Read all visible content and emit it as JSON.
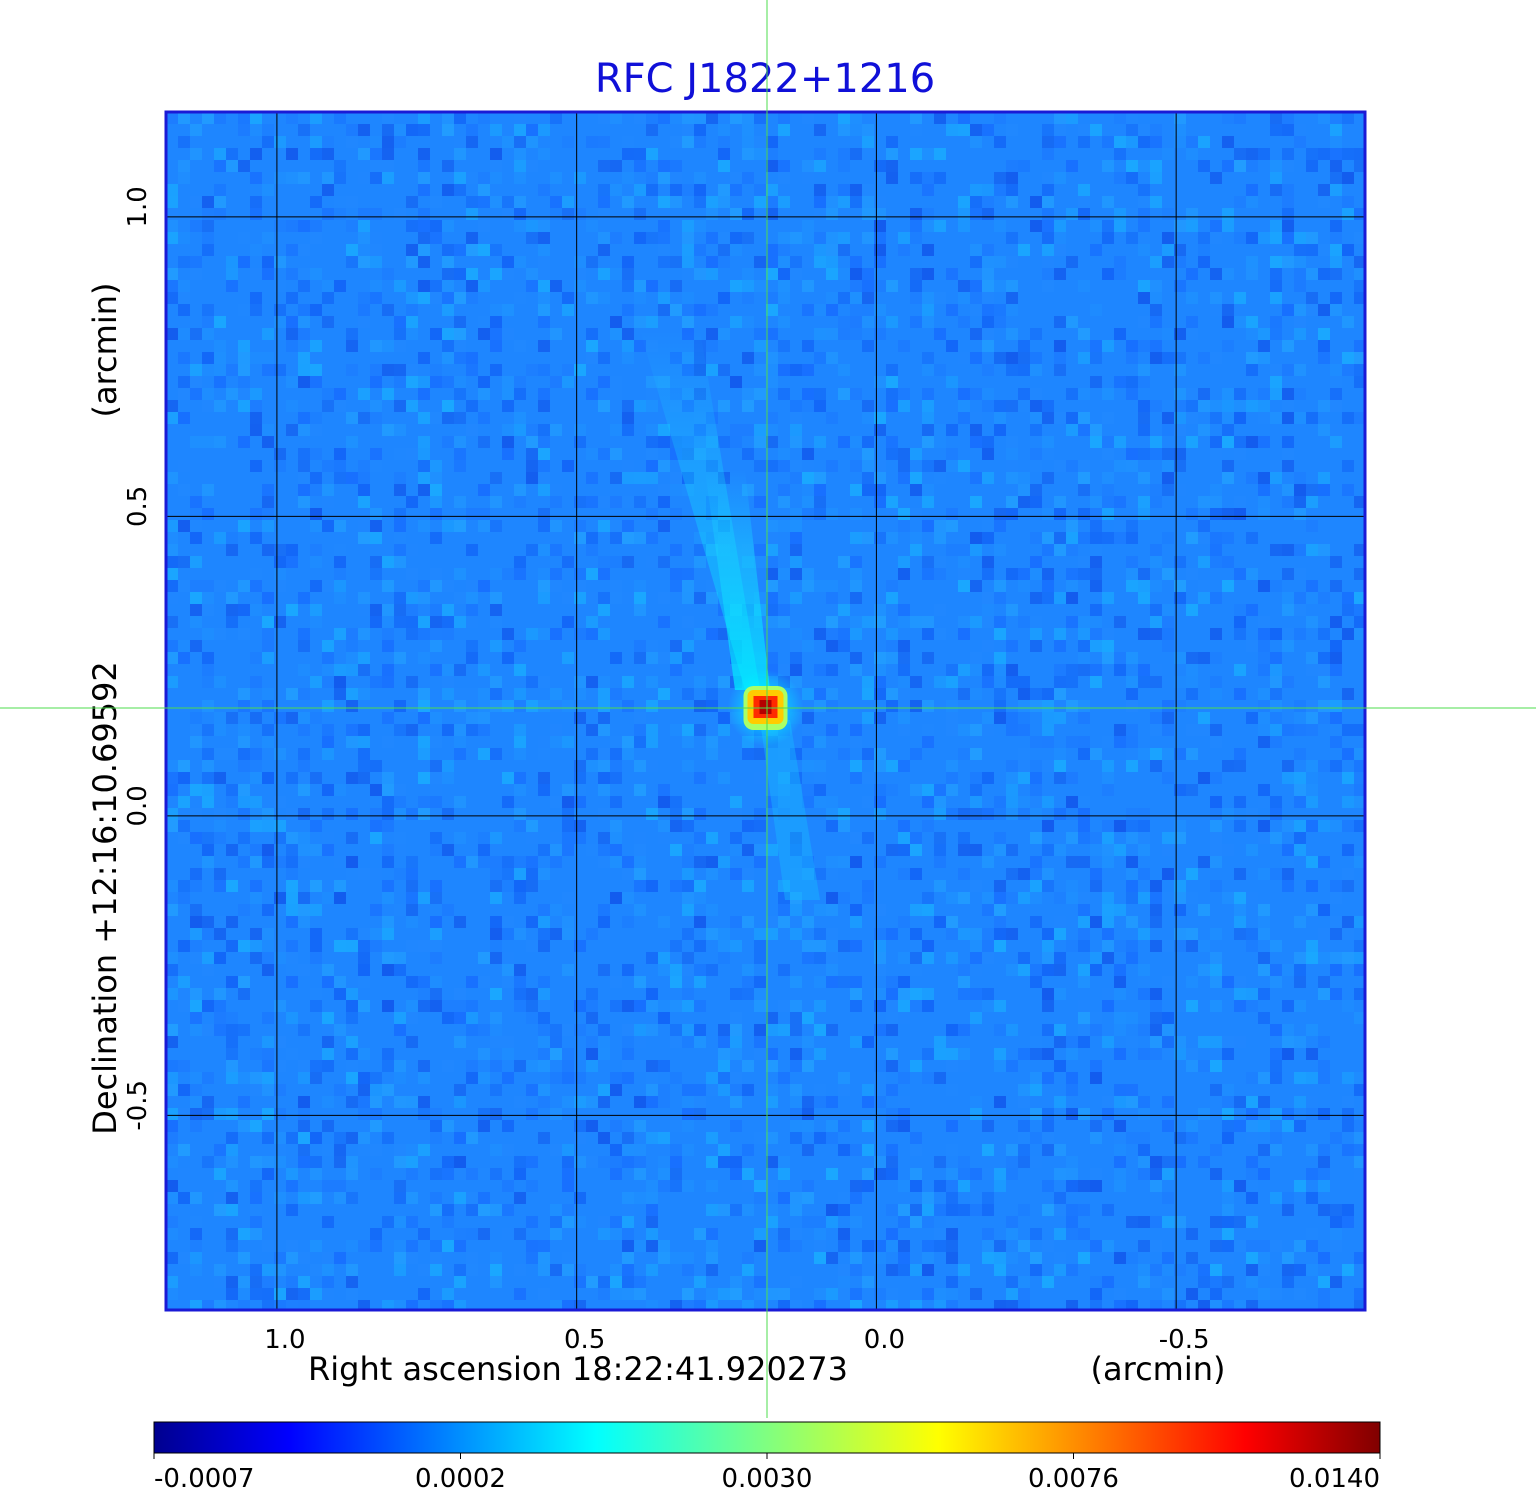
{
  "title": "RFC J1822+1216",
  "xaxis": {
    "label": "Right ascension  18:22:41.920273",
    "unit": "(arcmin)",
    "ticks": [
      {
        "value": 1.0,
        "label": "1.0"
      },
      {
        "value": 0.5,
        "label": "0.5"
      },
      {
        "value": 0.0,
        "label": "0.0"
      },
      {
        "value": -0.5,
        "label": "-0.5"
      }
    ],
    "range": [
      1.185,
      -0.815
    ]
  },
  "yaxis": {
    "label": "Declination  +12:16:10.69592",
    "unit": "(arcmin)",
    "ticks": [
      {
        "value": 1.0,
        "label": "1.0"
      },
      {
        "value": 0.5,
        "label": "0.5"
      },
      {
        "value": 0.0,
        "label": "0.0"
      },
      {
        "value": -0.5,
        "label": "-0.5"
      }
    ],
    "range": [
      -0.825,
      1.175
    ]
  },
  "source": {
    "ra_offset_arcmin": 0.185,
    "dec_offset_arcmin": 0.18
  },
  "colorbar": {
    "colormap": "jet",
    "ticks": [
      "-0.0007",
      "0.0002",
      "0.0030",
      "0.0076",
      "0.0140"
    ]
  },
  "colors": {
    "title": "#1010d8",
    "frame": "#1a1ad6",
    "crosshair": "#4ddc4d",
    "grid": "#000000"
  }
}
